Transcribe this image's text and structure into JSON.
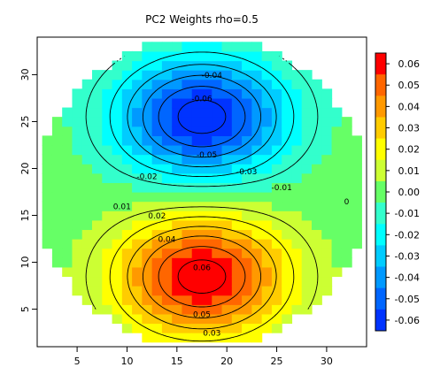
{
  "chart_data": {
    "type": "heatmap",
    "title": "PC2 Weights rho=0.5",
    "xlabel": "",
    "ylabel": "",
    "x_range": [
      1,
      34
    ],
    "y_range": [
      1,
      34
    ],
    "x_ticks": [
      5,
      10,
      15,
      20,
      25,
      30
    ],
    "y_ticks": [
      5,
      10,
      15,
      20,
      25,
      30
    ],
    "grid": false,
    "field": {
      "description_free": true,
      "circle_center": [
        17.5,
        17.5
      ],
      "circle_radius": 16.5,
      "neg_peak": {
        "x": 17.5,
        "y": 25.5,
        "value": -0.065
      },
      "pos_peak": {
        "x": 17.5,
        "y": 8.5,
        "value": 0.065
      },
      "spread_x": 6.0,
      "spread_y": 4.5
    },
    "colorbar": {
      "range": [
        -0.065,
        0.065
      ],
      "tick_labels": [
        "0.06",
        "0.05",
        "0.04",
        "0.03",
        "0.02",
        "0.01",
        "0.00",
        "-0.01",
        "-0.02",
        "-0.03",
        "-0.04",
        "-0.05",
        "-0.06"
      ],
      "tick_values": [
        0.06,
        0.05,
        0.04,
        0.03,
        0.02,
        0.01,
        0.0,
        -0.01,
        -0.02,
        -0.03,
        -0.04,
        -0.05,
        -0.06
      ],
      "colors": [
        "#0033ff",
        "#0066ff",
        "#0099ff",
        "#00ccff",
        "#00ffff",
        "#33ffcc",
        "#66ff66",
        "#ccff33",
        "#ffff00",
        "#ffcc00",
        "#ff9900",
        "#ff6600",
        "#ff0000"
      ],
      "bin_edges": [
        -0.065,
        -0.055,
        -0.045,
        -0.035,
        -0.025,
        -0.015,
        -0.005,
        0.005,
        0.015,
        0.025,
        0.035,
        0.045,
        0.055,
        0.065
      ]
    },
    "contour_labels": [
      {
        "text": "-0.04",
        "x": 18.5,
        "y": 30.0
      },
      {
        "text": "-0.06",
        "x": 17.5,
        "y": 27.5
      },
      {
        "text": "-0.05",
        "x": 18.0,
        "y": 21.5
      },
      {
        "text": "-0.03",
        "x": 22.0,
        "y": 19.7
      },
      {
        "text": "-0.02",
        "x": 12.0,
        "y": 19.2
      },
      {
        "text": "-0.01",
        "x": 25.5,
        "y": 18.0
      },
      {
        "text": "0",
        "x": 32.0,
        "y": 16.5
      },
      {
        "text": "0.01",
        "x": 9.5,
        "y": 16.0
      },
      {
        "text": "0.02",
        "x": 13.0,
        "y": 15.0
      },
      {
        "text": "0.04",
        "x": 14.0,
        "y": 12.5
      },
      {
        "text": "0.06",
        "x": 17.5,
        "y": 9.5
      },
      {
        "text": "0.05",
        "x": 17.5,
        "y": 4.5
      },
      {
        "text": "0.03",
        "x": 18.5,
        "y": 2.5
      }
    ]
  }
}
